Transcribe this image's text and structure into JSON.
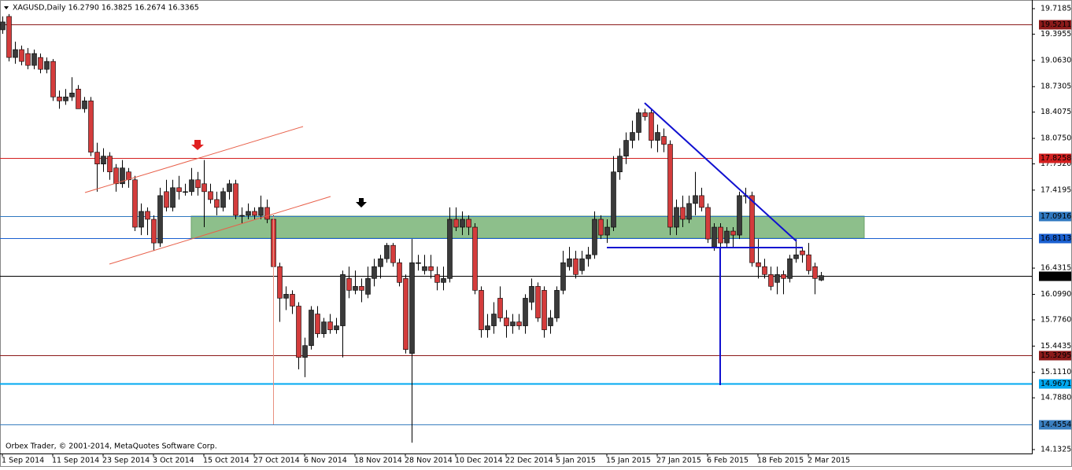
{
  "chart_data": {
    "type": "candlestick",
    "title": "XAGUSD,Daily  16.2790 16.3825 16.2674 16.3365",
    "footer": "Orbex Trader, © 2001-2014, MetaQuotes Software Corp.",
    "up_color": "#3a3a3a",
    "down_color": "#d43c3c",
    "ylim": [
      14.1325,
      19.7185
    ],
    "yticks": [
      19.7185,
      19.3955,
      {
        "value": 19.063,
        "label": "19.0630"
      },
      18.7305,
      18.4075,
      {
        "value": 18.075,
        "label": "18.0750"
      },
      {
        "value": 17.752,
        "label": "17.7520"
      },
      17.4195,
      16.4315,
      {
        "value": 16.099,
        "label": "16.0990"
      },
      {
        "value": 15.776,
        "label": "15.7760"
      },
      15.4435,
      {
        "value": 15.111,
        "label": "15.1110"
      },
      {
        "value": 14.788,
        "label": "14.7880"
      },
      14.1325
    ],
    "levels": [
      {
        "value": 19.5211,
        "color": "#8b1a1a"
      },
      {
        "value": 17.8258,
        "color": "#d42020"
      },
      {
        "value": 17.0916,
        "color": "#2f78c0"
      },
      {
        "value": 16.8113,
        "color": "#1a5fd0"
      },
      {
        "value": 16.3365,
        "color": "#000000"
      },
      {
        "value": 15.3295,
        "color": "#8b1a1a"
      },
      {
        "value": 14.9671,
        "color": "#00a8f0"
      },
      {
        "value": 14.4554,
        "color": "#3a7fc0"
      }
    ],
    "categories": [
      "1 Sep 2014",
      null,
      null,
      null,
      null,
      null,
      null,
      null,
      "11 Sep 2014",
      null,
      null,
      null,
      null,
      null,
      null,
      null,
      "23 Sep 2014",
      null,
      null,
      null,
      null,
      null,
      null,
      null,
      "3 Oct 2014",
      null,
      null,
      null,
      null,
      null,
      null,
      null,
      "15 Oct 2014",
      null,
      null,
      null,
      null,
      null,
      null,
      null,
      "27 Oct 2014",
      null,
      null,
      null,
      null,
      null,
      null,
      null,
      "6 Nov 2014",
      null,
      null,
      null,
      null,
      null,
      null,
      null,
      "18 Nov 2014",
      null,
      null,
      null,
      null,
      null,
      null,
      null,
      "28 Nov 2014",
      null,
      null,
      null,
      null,
      null,
      null,
      null,
      "10 Dec 2014",
      null,
      null,
      null,
      null,
      null,
      null,
      null,
      "22 Dec 2014",
      null,
      null,
      null,
      null,
      null,
      null,
      null,
      "5 Jan 2015",
      null,
      null,
      null,
      null,
      null,
      null,
      null,
      "15 Jan 2015",
      null,
      null,
      null,
      null,
      null,
      null,
      null,
      "27 Jan 2015",
      null,
      null,
      null,
      null,
      null,
      null,
      null,
      "6 Feb 2015",
      null,
      null,
      null,
      null,
      null,
      null,
      null,
      "18 Feb 2015",
      null,
      null,
      null,
      null,
      null,
      null,
      null,
      "2 Mar 2015",
      null,
      null
    ],
    "open": [
      19.45,
      19.62,
      19.1,
      19.2,
      19.15,
      19.0,
      19.1,
      18.95,
      19.05,
      18.6,
      18.55,
      18.6,
      18.7,
      18.45,
      18.55,
      17.9,
      17.75,
      17.85,
      17.7,
      17.5,
      17.65,
      17.55,
      16.95,
      17.15,
      17.05,
      16.75,
      17.4,
      17.2,
      17.45,
      17.4,
      17.4,
      17.55,
      17.5,
      17.4,
      17.3,
      17.2,
      17.4,
      17.5,
      17.1,
      17.1,
      17.15,
      17.1,
      17.2,
      17.05,
      16.45,
      16.05,
      16.1,
      15.95,
      15.3,
      15.45,
      15.85,
      15.6,
      15.75,
      15.65,
      15.7,
      16.3,
      16.15,
      16.2,
      16.1,
      16.3,
      16.45,
      16.55,
      16.72,
      16.5,
      16.3,
      15.35,
      16.5,
      16.4,
      16.45,
      16.35,
      16.25,
      16.3,
      17.05,
      16.95,
      17.05,
      16.95,
      16.15,
      15.65,
      15.7,
      16.05,
      15.8,
      15.7,
      15.75,
      15.7,
      16.0,
      16.2,
      16.15,
      15.7,
      15.8,
      16.15,
      16.45,
      16.55,
      16.4,
      16.55,
      16.6,
      17.05,
      16.85,
      16.95,
      17.65,
      17.85,
      18.05,
      18.15,
      18.4,
      18.4,
      18.05,
      18.1,
      18.0,
      16.95,
      17.2,
      17.05,
      17.25,
      17.35,
      17.2,
      16.7,
      16.95,
      16.75,
      16.9,
      16.85,
      17.35,
      17.35,
      16.5,
      16.45,
      16.35,
      16.25,
      16.35,
      16.3,
      16.55,
      16.65,
      16.6,
      16.45,
      16.279
    ],
    "high": [
      19.62,
      19.65,
      19.3,
      19.25,
      19.22,
      19.2,
      19.15,
      19.1,
      19.08,
      18.68,
      18.7,
      18.85,
      18.75,
      18.6,
      18.6,
      18.02,
      17.95,
      17.9,
      17.75,
      17.8,
      17.7,
      17.6,
      17.25,
      17.2,
      17.1,
      17.45,
      17.55,
      17.55,
      17.6,
      17.5,
      17.7,
      17.65,
      17.8,
      17.5,
      17.4,
      17.45,
      17.55,
      17.55,
      17.2,
      17.25,
      17.2,
      17.35,
      17.3,
      17.1,
      16.5,
      16.2,
      16.15,
      16.0,
      15.55,
      15.95,
      15.95,
      15.8,
      15.85,
      15.8,
      16.4,
      16.45,
      16.4,
      16.3,
      16.45,
      16.55,
      16.6,
      16.75,
      16.75,
      16.55,
      16.35,
      16.8,
      16.6,
      16.6,
      16.6,
      16.45,
      16.45,
      17.2,
      17.2,
      17.15,
      17.1,
      17.0,
      16.2,
      15.85,
      16.0,
      16.2,
      15.9,
      15.85,
      15.85,
      16.1,
      16.3,
      16.25,
      16.2,
      15.9,
      16.2,
      16.65,
      16.7,
      16.65,
      16.65,
      16.7,
      17.15,
      17.1,
      17.05,
      17.85,
      17.95,
      18.15,
      18.3,
      18.45,
      18.45,
      18.45,
      18.25,
      18.2,
      18.05,
      17.3,
      17.35,
      17.35,
      17.65,
      17.45,
      17.25,
      17.0,
      17.0,
      16.95,
      16.95,
      17.4,
      17.45,
      17.4,
      16.8,
      16.55,
      16.45,
      16.45,
      16.4,
      16.6,
      16.8,
      16.7,
      16.75,
      16.5,
      16.3825
    ],
    "low": [
      19.4,
      19.05,
      19.02,
      19.0,
      18.95,
      18.95,
      18.9,
      18.9,
      18.55,
      18.45,
      18.5,
      18.55,
      18.45,
      18.4,
      17.85,
      17.4,
      17.65,
      17.55,
      17.4,
      17.45,
      17.45,
      16.9,
      16.85,
      16.85,
      16.65,
      16.7,
      17.15,
      17.15,
      17.3,
      17.35,
      17.35,
      17.35,
      16.95,
      17.25,
      17.1,
      17.15,
      17.3,
      17.05,
      17.0,
      17.05,
      17.05,
      17.05,
      17.0,
      16.4,
      15.75,
      15.9,
      15.85,
      15.15,
      15.05,
      15.4,
      15.55,
      15.55,
      15.6,
      15.6,
      15.3,
      16.05,
      16.1,
      16.0,
      16.05,
      16.2,
      16.3,
      16.5,
      16.45,
      16.2,
      15.35,
      14.22,
      16.4,
      16.35,
      16.3,
      16.15,
      16.15,
      16.25,
      16.9,
      16.85,
      16.85,
      16.1,
      15.55,
      15.55,
      15.6,
      15.75,
      15.55,
      15.6,
      15.65,
      15.6,
      15.9,
      15.75,
      15.55,
      15.6,
      15.75,
      16.1,
      16.4,
      16.3,
      16.35,
      16.45,
      16.55,
      16.8,
      16.75,
      16.9,
      17.55,
      17.75,
      17.95,
      18.05,
      18.3,
      17.95,
      17.9,
      17.9,
      16.85,
      16.85,
      16.95,
      17.0,
      17.1,
      17.15,
      16.75,
      16.65,
      16.7,
      16.7,
      16.7,
      16.8,
      17.25,
      16.45,
      16.3,
      16.3,
      16.15,
      16.1,
      16.1,
      16.25,
      16.5,
      16.5,
      16.35,
      16.1,
      16.2674
    ],
    "close": [
      19.55,
      19.1,
      19.2,
      19.05,
      19.0,
      19.15,
      18.95,
      19.05,
      18.6,
      18.55,
      18.6,
      18.65,
      18.45,
      18.55,
      17.9,
      17.75,
      17.85,
      17.65,
      17.5,
      17.7,
      17.55,
      16.95,
      17.15,
      17.05,
      16.75,
      17.35,
      17.2,
      17.45,
      17.4,
      17.4,
      17.55,
      17.45,
      17.4,
      17.3,
      17.2,
      17.4,
      17.5,
      17.1,
      17.1,
      17.15,
      17.1,
      17.2,
      17.05,
      16.45,
      16.05,
      16.1,
      15.95,
      15.3,
      15.45,
      15.9,
      15.6,
      15.75,
      15.65,
      15.7,
      16.35,
      16.15,
      16.2,
      16.15,
      16.3,
      16.45,
      16.55,
      16.72,
      16.5,
      16.25,
      15.4,
      16.5,
      16.5,
      16.45,
      16.4,
      16.25,
      16.3,
      17.05,
      16.95,
      17.05,
      16.95,
      16.15,
      15.65,
      15.7,
      15.85,
      15.8,
      15.7,
      15.75,
      15.7,
      16.05,
      16.2,
      15.8,
      15.65,
      15.8,
      16.15,
      16.5,
      16.55,
      16.35,
      16.55,
      16.6,
      17.05,
      16.85,
      16.95,
      17.65,
      17.85,
      18.05,
      18.15,
      18.4,
      18.35,
      18.05,
      18.15,
      18.0,
      16.95,
      17.2,
      17.05,
      17.25,
      17.35,
      17.2,
      16.8,
      16.95,
      16.75,
      16.9,
      16.85,
      17.35,
      17.35,
      16.5,
      16.45,
      16.35,
      16.2,
      16.35,
      16.3,
      16.55,
      16.6,
      16.6,
      16.4,
      16.3,
      16.3365
    ]
  }
}
